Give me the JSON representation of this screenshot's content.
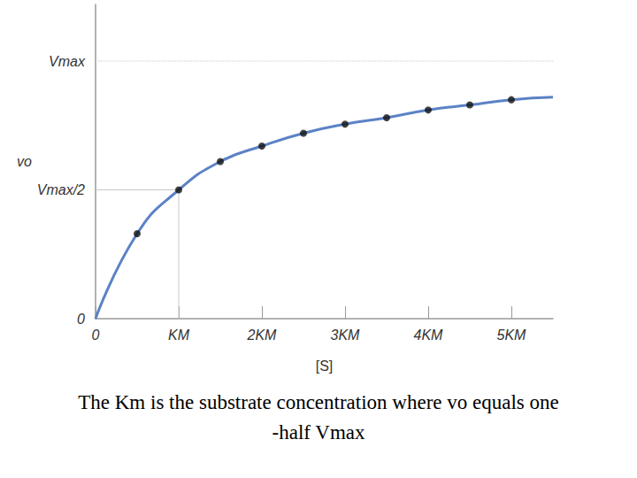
{
  "chart_data": {
    "type": "line",
    "xlabel": "[S]",
    "ylabel": "vo",
    "xlim": [
      0,
      5.5
    ],
    "ylim": [
      0,
      1.22
    ],
    "xticks": [
      0,
      {
        "value": 1,
        "label": "KM"
      },
      {
        "value": 2,
        "label": "2KM"
      },
      {
        "value": 3,
        "label": "3KM"
      },
      {
        "value": 4,
        "label": "4KM"
      },
      {
        "value": 5,
        "label": "5KM"
      }
    ],
    "yticks": [
      0,
      {
        "value": 0.5,
        "label": "Vmax/2"
      },
      {
        "value": 1,
        "label": "Vmax"
      }
    ],
    "grid": false,
    "series": [
      {
        "type": "line",
        "line_style": "dotted",
        "marker": "none",
        "color": "#c8c8c8",
        "x": [
          0,
          5.5
        ],
        "values": [
          1,
          1
        ]
      },
      {
        "type": "line",
        "line_style": "solid",
        "marker": "none",
        "color": "#c8c8c8",
        "x": [
          0,
          1,
          1
        ],
        "values": [
          0.5,
          0.5,
          0
        ]
      },
      {
        "type": "line",
        "line_style": "solid",
        "marker": "none",
        "color": "#5b82c6",
        "x": [
          0,
          0.5,
          1,
          1.5,
          2,
          2.5,
          3,
          3.5,
          4,
          4.5,
          5,
          5.5
        ],
        "values": [
          0,
          0.33,
          0.5,
          0.61,
          0.67,
          0.72,
          0.755,
          0.78,
          0.81,
          0.83,
          0.85,
          0.86
        ]
      },
      {
        "type": "scatter",
        "marker": "circle",
        "color": "#111111",
        "x": [
          0.5,
          1,
          1.5,
          2,
          2.5,
          3,
          3.5,
          4,
          4.5,
          5
        ],
        "values": [
          0.33,
          0.5,
          0.61,
          0.67,
          0.72,
          0.755,
          0.78,
          0.81,
          0.83,
          0.85
        ]
      }
    ],
    "caption": [
      "The Km is the substrate concentration where vo equals one",
      "-half Vmax"
    ]
  }
}
